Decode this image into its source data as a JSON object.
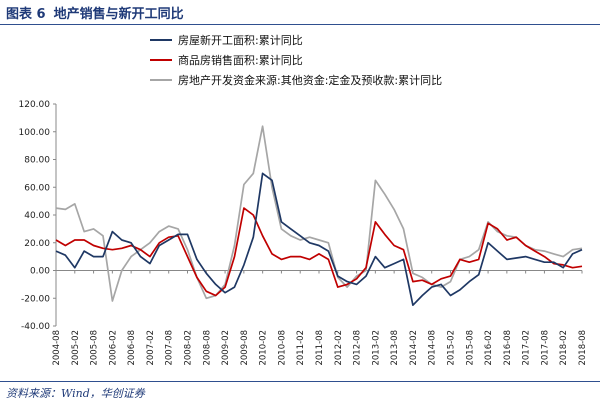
{
  "figure": {
    "label": "图表 6",
    "title": "地产销售与新开工同比",
    "source": "资料来源：Wind，华创证券"
  },
  "chart_data": {
    "type": "line",
    "ylim": [
      -40,
      120
    ],
    "yticks": [
      "120.00",
      "100.00",
      "80.00",
      "60.00",
      "40.00",
      "20.00",
      "0.00",
      "-20.00",
      "-40.00"
    ],
    "ytick_values": [
      120,
      100,
      80,
      60,
      40,
      20,
      0,
      -20,
      -40
    ],
    "xticks": [
      "2004-08",
      "2005-02",
      "2005-08",
      "2006-02",
      "2006-08",
      "2007-02",
      "2007-08",
      "2008-02",
      "2008-08",
      "2009-02",
      "2009-08",
      "2010-02",
      "2010-08",
      "2011-02",
      "2011-08",
      "2012-02",
      "2012-08",
      "2013-02",
      "2013-08",
      "2014-02",
      "2014-08",
      "2015-02",
      "2015-08",
      "2016-02",
      "2016-08",
      "2017-02",
      "2017-08",
      "2018-02",
      "2018-08"
    ],
    "legend_position": "top-left",
    "grid": false,
    "x": [
      "2004-08",
      "2004-11",
      "2005-02",
      "2005-05",
      "2005-08",
      "2005-11",
      "2006-02",
      "2006-05",
      "2006-08",
      "2006-11",
      "2007-02",
      "2007-05",
      "2007-08",
      "2007-11",
      "2008-02",
      "2008-05",
      "2008-08",
      "2008-11",
      "2009-02",
      "2009-05",
      "2009-08",
      "2009-11",
      "2010-02",
      "2010-05",
      "2010-08",
      "2010-11",
      "2011-02",
      "2011-05",
      "2011-08",
      "2011-11",
      "2012-02",
      "2012-05",
      "2012-08",
      "2012-11",
      "2013-02",
      "2013-05",
      "2013-08",
      "2013-11",
      "2014-02",
      "2014-05",
      "2014-08",
      "2014-11",
      "2015-02",
      "2015-05",
      "2015-08",
      "2015-11",
      "2016-02",
      "2016-05",
      "2016-08",
      "2016-11",
      "2017-02",
      "2017-05",
      "2017-08",
      "2017-11",
      "2018-02",
      "2018-05",
      "2018-08"
    ],
    "series": [
      {
        "name": "房屋新开工面积:累计同比",
        "color": "#1f3864",
        "values": [
          14,
          11,
          2,
          14,
          10,
          10,
          28,
          22,
          20,
          10,
          5,
          18,
          22,
          26,
          26,
          8,
          -2,
          -10,
          -16,
          -12,
          4,
          24,
          70,
          65,
          35,
          30,
          25,
          20,
          18,
          14,
          -4,
          -8,
          -10,
          -4,
          10,
          2,
          5,
          8,
          -25,
          -18,
          -12,
          -10,
          -18,
          -14,
          -8,
          -3,
          20,
          14,
          8,
          9,
          10,
          8,
          6,
          6,
          2,
          12,
          15
        ]
      },
      {
        "name": "商品房销售面积:累计同比",
        "color": "#c00000",
        "values": [
          22,
          18,
          22,
          22,
          18,
          16,
          15,
          16,
          18,
          15,
          10,
          20,
          24,
          25,
          10,
          -5,
          -15,
          -18,
          -12,
          10,
          45,
          40,
          25,
          12,
          8,
          10,
          10,
          8,
          12,
          8,
          -12,
          -10,
          -6,
          2,
          35,
          26,
          18,
          15,
          -8,
          -7,
          -10,
          -6,
          -4,
          8,
          6,
          8,
          34,
          30,
          22,
          24,
          18,
          14,
          10,
          5,
          4,
          2,
          3
        ]
      },
      {
        "name": "房地产开发资金来源:其他资金:定金及预收款:累计同比",
        "color": "#a6a6a6",
        "values": [
          45,
          44,
          48,
          28,
          30,
          25,
          -22,
          0,
          10,
          15,
          20,
          28,
          32,
          30,
          15,
          -5,
          -20,
          -18,
          -10,
          18,
          62,
          70,
          104,
          60,
          30,
          25,
          22,
          24,
          22,
          20,
          -5,
          -12,
          -4,
          0,
          65,
          55,
          44,
          30,
          -2,
          -5,
          -10,
          -12,
          -8,
          8,
          10,
          15,
          35,
          28,
          25,
          24,
          18,
          15,
          14,
          12,
          10,
          15,
          16
        ]
      }
    ]
  }
}
